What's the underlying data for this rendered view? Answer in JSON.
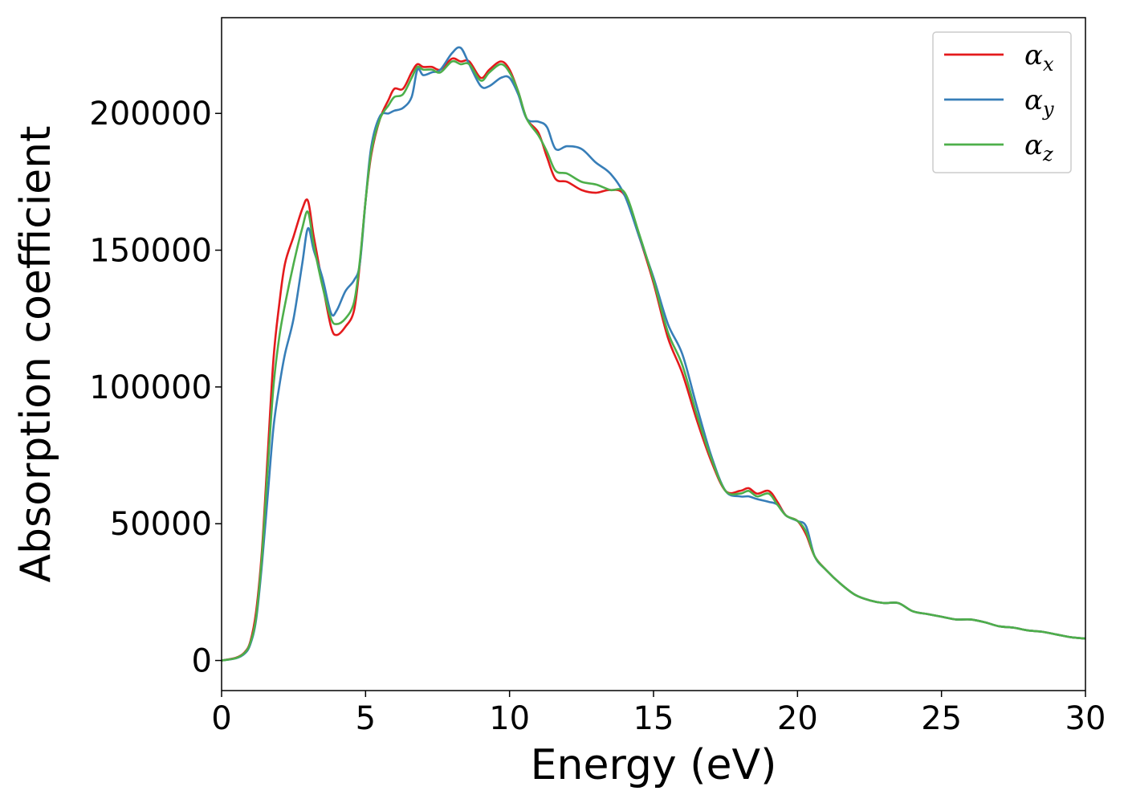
{
  "chart_data": {
    "type": "line",
    "title": "",
    "xlabel": "Energy (eV)",
    "ylabel": "Absorption coefficient",
    "xlim": [
      0,
      30
    ],
    "ylim": [
      -11000,
      235000
    ],
    "xticks": [
      0,
      5,
      10,
      15,
      20,
      25,
      30
    ],
    "xtick_labels": [
      "0",
      "5",
      "10",
      "15",
      "20",
      "25",
      "30"
    ],
    "yticks": [
      0,
      50000,
      100000,
      150000,
      200000
    ],
    "ytick_labels": [
      "0",
      "50000",
      "100000",
      "150000",
      "200000"
    ],
    "grid": false,
    "legend": {
      "placement": "top-right",
      "entries": [
        {
          "base": "α",
          "sub": "x"
        },
        {
          "base": "α",
          "sub": "y"
        },
        {
          "base": "α",
          "sub": "z"
        }
      ]
    },
    "colors": [
      "#e41a1c",
      "#377eb8",
      "#4daf4a"
    ],
    "series": [
      {
        "x": [
          0,
          0.5,
          0.8,
          1.0,
          1.2,
          1.4,
          1.6,
          1.8,
          2.0,
          2.2,
          2.5,
          2.8,
          3.0,
          3.2,
          3.5,
          3.8,
          4.0,
          4.3,
          4.6,
          4.8,
          5.0,
          5.2,
          5.5,
          5.8,
          6.0,
          6.3,
          6.6,
          6.8,
          7.0,
          7.3,
          7.6,
          8.0,
          8.3,
          8.6,
          9.0,
          9.3,
          9.7,
          10.0,
          10.3,
          10.6,
          11.0,
          11.3,
          11.6,
          12.0,
          12.5,
          13.0,
          13.5,
          14.0,
          14.5,
          15.0,
          15.5,
          16.0,
          16.5,
          17.0,
          17.5,
          18.0,
          18.3,
          18.6,
          19.0,
          19.3,
          19.6,
          20.0,
          20.3,
          20.6,
          21.0,
          21.5,
          22.0,
          22.5,
          23.0,
          23.5,
          24.0,
          24.5,
          25.0,
          25.5,
          26.0,
          26.5,
          27.0,
          27.5,
          28.0,
          28.5,
          29.0,
          29.5,
          30.0
        ],
        "values": [
          0,
          1000,
          3000,
          7000,
          18000,
          40000,
          75000,
          110000,
          130000,
          145000,
          155000,
          165000,
          168000,
          155000,
          138000,
          122000,
          119000,
          122000,
          128000,
          145000,
          168000,
          185000,
          198000,
          205000,
          209000,
          209000,
          215000,
          218000,
          217000,
          217000,
          216000,
          220000,
          219000,
          219000,
          213000,
          216000,
          219000,
          216000,
          208000,
          198000,
          193000,
          184000,
          176000,
          175000,
          172000,
          171000,
          172000,
          170000,
          155000,
          138000,
          118000,
          105000,
          88000,
          73000,
          62000,
          62000,
          63000,
          61000,
          62000,
          58000,
          53000,
          51000,
          46000,
          38000,
          33000,
          28000,
          24000,
          22000,
          21000,
          21000,
          18000,
          17000,
          16000,
          15000,
          15000,
          14000,
          12500,
          12000,
          11000,
          10500,
          9500,
          8500,
          8000
        ]
      },
      {
        "x": [
          0,
          0.5,
          0.8,
          1.0,
          1.2,
          1.4,
          1.6,
          1.8,
          2.0,
          2.2,
          2.5,
          2.8,
          3.0,
          3.2,
          3.5,
          3.8,
          4.0,
          4.3,
          4.6,
          4.8,
          5.0,
          5.2,
          5.5,
          5.8,
          6.0,
          6.3,
          6.6,
          6.8,
          7.0,
          7.3,
          7.6,
          8.0,
          8.3,
          8.6,
          9.0,
          9.3,
          9.7,
          10.0,
          10.3,
          10.6,
          11.0,
          11.3,
          11.6,
          12.0,
          12.5,
          13.0,
          13.5,
          14.0,
          14.5,
          15.0,
          15.5,
          16.0,
          16.5,
          17.0,
          17.5,
          18.0,
          18.3,
          18.6,
          19.0,
          19.3,
          19.6,
          20.0,
          20.3,
          20.6,
          21.0,
          21.5,
          22.0,
          22.5,
          23.0,
          23.5,
          24.0,
          24.5,
          25.0,
          25.5,
          26.0,
          26.5,
          27.0,
          27.5,
          28.0,
          28.5,
          29.0,
          29.5,
          30.0
        ],
        "values": [
          0,
          800,
          2500,
          6000,
          15000,
          35000,
          60000,
          85000,
          100000,
          112000,
          125000,
          145000,
          158000,
          150000,
          140000,
          127000,
          128000,
          135000,
          139000,
          145000,
          168000,
          188000,
          199000,
          200000,
          201000,
          202000,
          206000,
          216000,
          214000,
          215000,
          216000,
          222000,
          224000,
          218000,
          210000,
          210000,
          213000,
          213000,
          207000,
          198000,
          197000,
          195000,
          187000,
          188000,
          187000,
          182000,
          178000,
          170000,
          155000,
          140000,
          123000,
          112000,
          93000,
          75000,
          62000,
          60000,
          60000,
          59000,
          58000,
          57000,
          53000,
          51000,
          49000,
          38000,
          33000,
          28000,
          24000,
          22000,
          21000,
          21000,
          18000,
          17000,
          16000,
          15000,
          15000,
          14000,
          12500,
          12000,
          11000,
          10500,
          9500,
          8500,
          8000
        ]
      },
      {
        "x": [
          0,
          0.5,
          0.8,
          1.0,
          1.2,
          1.4,
          1.6,
          1.8,
          2.0,
          2.2,
          2.5,
          2.8,
          3.0,
          3.2,
          3.5,
          3.8,
          4.0,
          4.3,
          4.6,
          4.8,
          5.0,
          5.2,
          5.5,
          5.8,
          6.0,
          6.3,
          6.6,
          6.8,
          7.0,
          7.3,
          7.6,
          8.0,
          8.3,
          8.6,
          9.0,
          9.3,
          9.7,
          10.0,
          10.3,
          10.6,
          11.0,
          11.3,
          11.6,
          12.0,
          12.5,
          13.0,
          13.5,
          14.0,
          14.5,
          15.0,
          15.5,
          16.0,
          16.5,
          17.0,
          17.5,
          18.0,
          18.3,
          18.6,
          19.0,
          19.3,
          19.6,
          20.0,
          20.3,
          20.6,
          21.0,
          21.5,
          22.0,
          22.5,
          23.0,
          23.5,
          24.0,
          24.5,
          25.0,
          25.5,
          26.0,
          26.5,
          27.0,
          27.5,
          28.0,
          28.5,
          29.0,
          29.5,
          30.0
        ],
        "values": [
          0,
          900,
          2800,
          6500,
          16000,
          38000,
          70000,
          100000,
          118000,
          130000,
          145000,
          158000,
          164000,
          152000,
          137000,
          125000,
          123000,
          125000,
          131000,
          146000,
          168000,
          186000,
          198000,
          203000,
          206000,
          207000,
          213000,
          217000,
          216000,
          216000,
          215000,
          219000,
          218000,
          218000,
          212000,
          215000,
          218000,
          215000,
          208000,
          198000,
          192000,
          186000,
          179000,
          178000,
          175000,
          174000,
          172000,
          171000,
          156000,
          139000,
          120000,
          108000,
          90000,
          74000,
          62000,
          61000,
          62000,
          60000,
          61000,
          57000,
          53000,
          51000,
          47000,
          38000,
          33000,
          28000,
          24000,
          22000,
          21000,
          21000,
          18000,
          17000,
          16000,
          15000,
          15000,
          14000,
          12500,
          12000,
          11000,
          10500,
          9500,
          8500,
          8000
        ]
      }
    ]
  }
}
